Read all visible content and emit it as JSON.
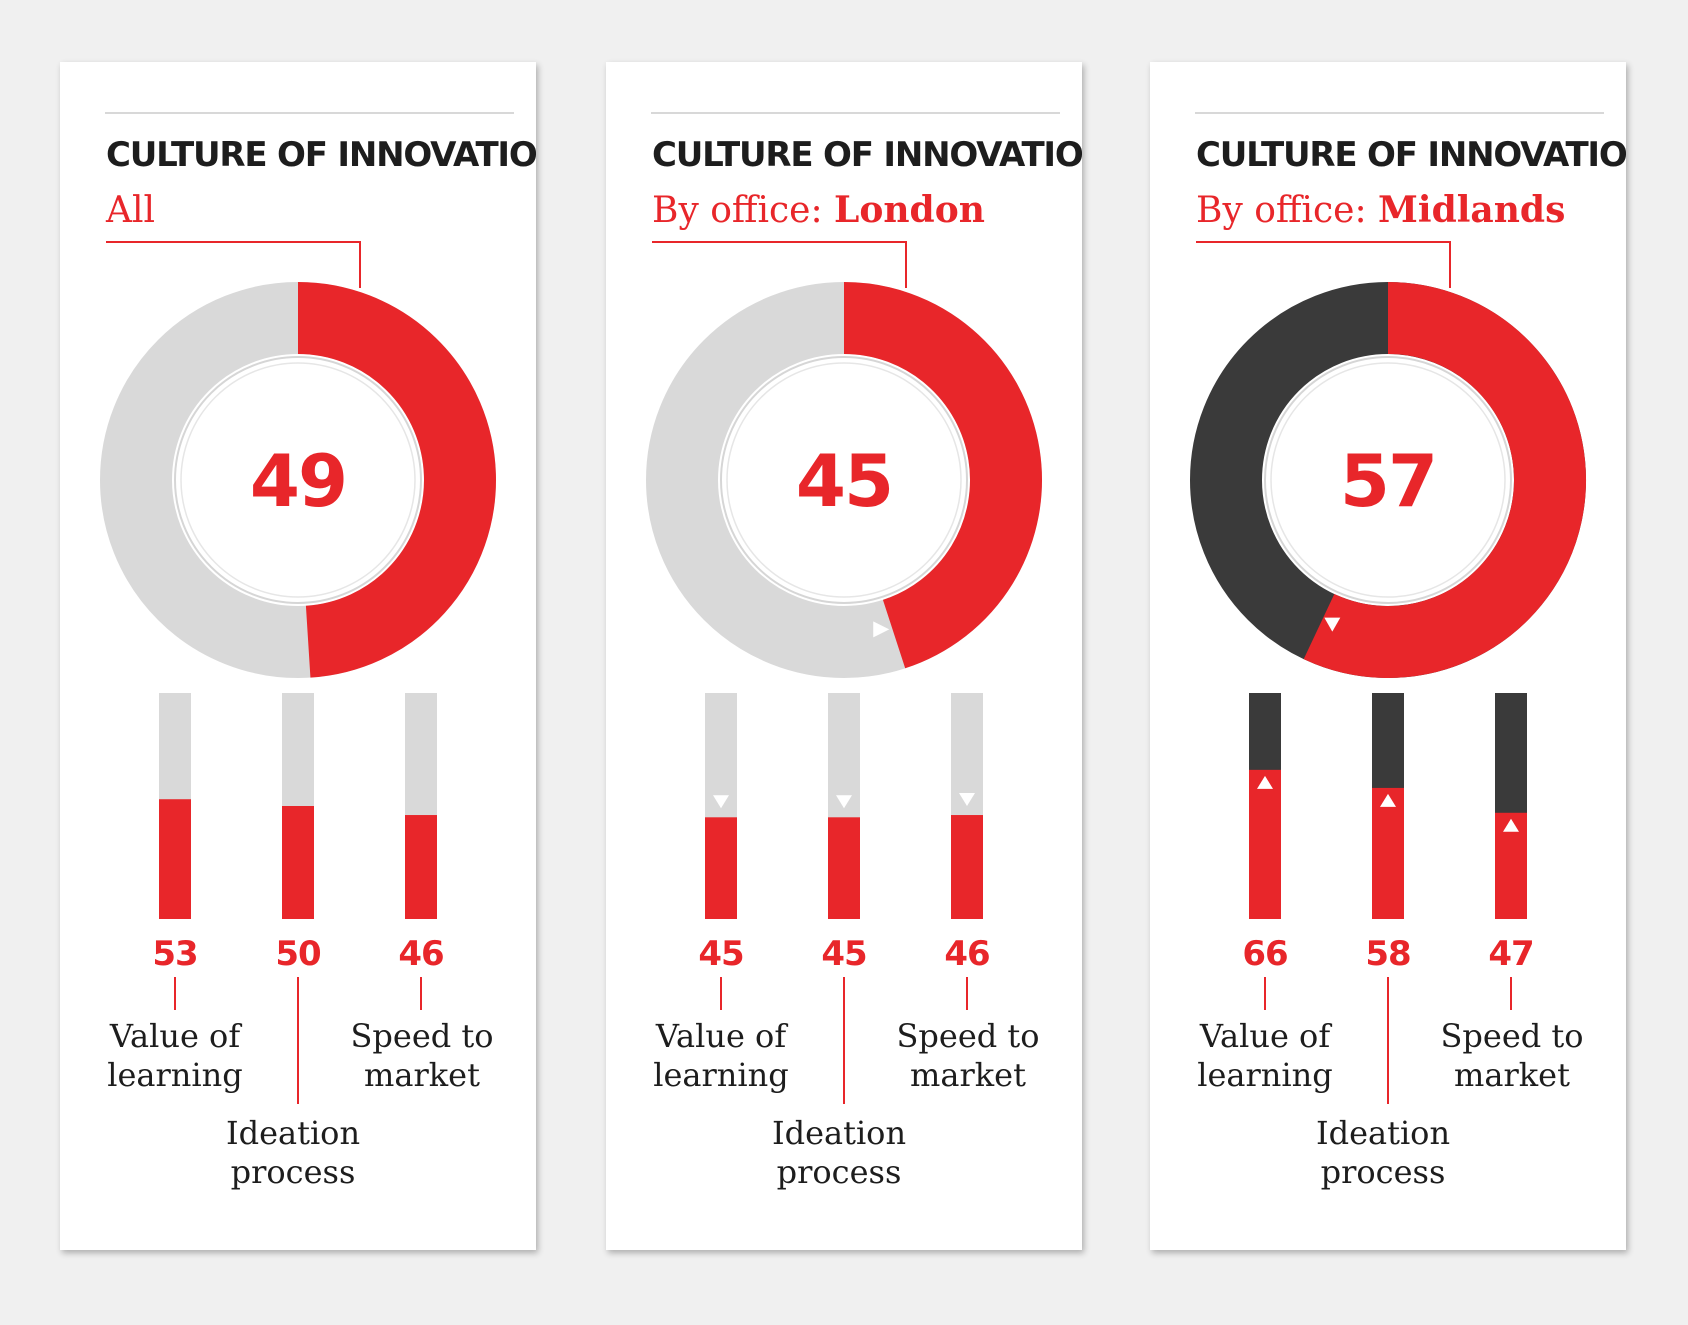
{
  "colors": {
    "accent": "#e8262a",
    "track_light": "#d9d9d9",
    "track_dark": "#3a3a3a",
    "text_dark": "#1d1d1d",
    "background": "#f0f0f0",
    "panel": "#ffffff"
  },
  "chart_data": [
    {
      "type": "donut+bar",
      "title": "CULTURE OF INNOVATION",
      "subtitle_prefix": "All",
      "subtitle_value": "",
      "scale": [
        0,
        100
      ],
      "score": 49,
      "score_label": "49",
      "track_style": "light",
      "arc_change_marker": "none",
      "bars": [
        {
          "label_line1": "Value of",
          "label_line2": "learning",
          "value": 53,
          "value_label": "53",
          "change": "none"
        },
        {
          "label_line1": "Ideation",
          "label_line2": "process",
          "value": 50,
          "value_label": "50",
          "change": "none"
        },
        {
          "label_line1": "Speed to",
          "label_line2": "market",
          "value": 46,
          "value_label": "46",
          "change": "none"
        }
      ]
    },
    {
      "type": "donut+bar",
      "title": "CULTURE OF INNOVATION",
      "subtitle_prefix": "By office: ",
      "subtitle_value": "London",
      "scale": [
        0,
        100
      ],
      "score": 45,
      "score_label": "45",
      "track_style": "light",
      "arc_change_marker": "down",
      "bars": [
        {
          "label_line1": "Value of",
          "label_line2": "learning",
          "value": 45,
          "value_label": "45",
          "change": "down"
        },
        {
          "label_line1": "Ideation",
          "label_line2": "process",
          "value": 45,
          "value_label": "45",
          "change": "down"
        },
        {
          "label_line1": "Speed to",
          "label_line2": "market",
          "value": 46,
          "value_label": "46",
          "change": "down"
        }
      ]
    },
    {
      "type": "donut+bar",
      "title": "CULTURE OF INNOVATION",
      "subtitle_prefix": "By office: ",
      "subtitle_value": "Midlands",
      "scale": [
        0,
        100
      ],
      "score": 57,
      "score_label": "57",
      "track_style": "dark",
      "arc_change_marker": "up",
      "bars": [
        {
          "label_line1": "Value of",
          "label_line2": "learning",
          "value": 66,
          "value_label": "66",
          "change": "up"
        },
        {
          "label_line1": "Ideation",
          "label_line2": "process",
          "value": 58,
          "value_label": "58",
          "change": "up"
        },
        {
          "label_line1": "Speed to",
          "label_line2": "market",
          "value": 47,
          "value_label": "47",
          "change": "up"
        }
      ]
    }
  ]
}
